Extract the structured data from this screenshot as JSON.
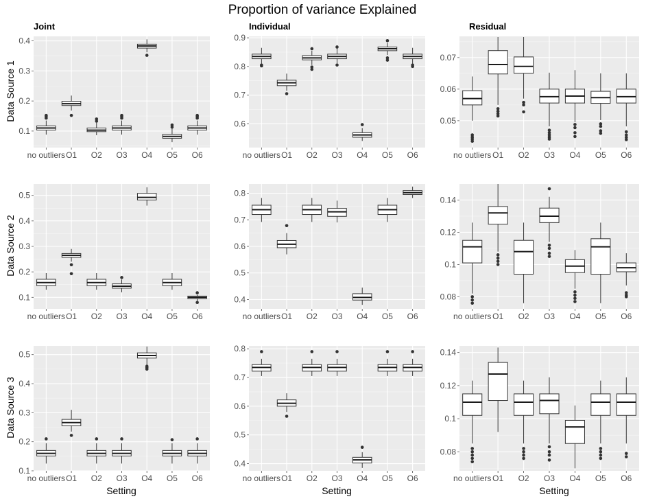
{
  "chart_data": {
    "type": "boxplot",
    "title": "Proportion of variance Explained",
    "xlabel": "Setting",
    "columns": [
      "Joint",
      "Individual",
      "Residual"
    ],
    "rows": [
      "Data Source 1",
      "Data Source 2",
      "Data Source 3"
    ],
    "categories": [
      "no outliers",
      "O1",
      "O2",
      "O3",
      "O4",
      "O5",
      "O6"
    ],
    "panels": [
      {
        "row": 0,
        "col": 0,
        "ylim": [
          0.045,
          0.415
        ],
        "yticks": [
          0.1,
          0.2,
          0.3,
          0.4
        ],
        "boxes": [
          {
            "q1": 0.103,
            "med": 0.11,
            "q3": 0.117,
            "lo": 0.088,
            "hi": 0.135,
            "out": [
              0.143,
              0.148,
              0.152
            ]
          },
          {
            "q1": 0.185,
            "med": 0.191,
            "q3": 0.199,
            "lo": 0.168,
            "hi": 0.218,
            "out": [
              0.152
            ]
          },
          {
            "q1": 0.098,
            "med": 0.103,
            "q3": 0.11,
            "lo": 0.086,
            "hi": 0.128,
            "out": [
              0.133,
              0.14
            ]
          },
          {
            "q1": 0.103,
            "med": 0.11,
            "q3": 0.117,
            "lo": 0.088,
            "hi": 0.135,
            "out": [
              0.143,
              0.148,
              0.152
            ]
          },
          {
            "q1": 0.376,
            "med": 0.383,
            "q3": 0.389,
            "lo": 0.362,
            "hi": 0.405,
            "out": [
              0.352
            ]
          },
          {
            "q1": 0.076,
            "med": 0.082,
            "q3": 0.089,
            "lo": 0.063,
            "hi": 0.108,
            "out": [
              0.113,
              0.12
            ]
          },
          {
            "q1": 0.103,
            "med": 0.11,
            "q3": 0.117,
            "lo": 0.088,
            "hi": 0.135,
            "out": [
              0.143,
              0.148,
              0.152
            ]
          }
        ]
      },
      {
        "row": 0,
        "col": 1,
        "ylim": [
          0.517,
          0.905
        ],
        "yticks": [
          0.6,
          0.7,
          0.8,
          0.9
        ],
        "boxes": [
          {
            "q1": 0.827,
            "med": 0.835,
            "q3": 0.843,
            "lo": 0.81,
            "hi": 0.865,
            "out": [
              0.805,
              0.802
            ]
          },
          {
            "q1": 0.733,
            "med": 0.743,
            "q3": 0.752,
            "lo": 0.715,
            "hi": 0.775,
            "out": [
              0.705
            ]
          },
          {
            "q1": 0.823,
            "med": 0.83,
            "q3": 0.838,
            "lo": 0.805,
            "hi": 0.855,
            "out": [
              0.862,
              0.798,
              0.79
            ]
          },
          {
            "q1": 0.827,
            "med": 0.835,
            "q3": 0.843,
            "lo": 0.81,
            "hi": 0.865,
            "out": [
              0.805,
              0.868
            ]
          },
          {
            "q1": 0.553,
            "med": 0.561,
            "q3": 0.569,
            "lo": 0.54,
            "hi": 0.585,
            "out": [
              0.597
            ]
          },
          {
            "q1": 0.855,
            "med": 0.862,
            "q3": 0.868,
            "lo": 0.84,
            "hi": 0.882,
            "out": [
              0.89,
              0.83,
              0.822
            ]
          },
          {
            "q1": 0.827,
            "med": 0.835,
            "q3": 0.843,
            "lo": 0.81,
            "hi": 0.865,
            "out": [
              0.805,
              0.8
            ]
          }
        ]
      },
      {
        "row": 0,
        "col": 2,
        "ylim": [
          0.0415,
          0.0767
        ],
        "yticks": [
          0.05,
          0.06,
          0.07
        ],
        "boxes": [
          {
            "q1": 0.055,
            "med": 0.057,
            "q3": 0.0595,
            "lo": 0.05,
            "hi": 0.064,
            "out": [
              0.0455,
              0.0448,
              0.0442,
              0.0435
            ]
          },
          {
            "q1": 0.0648,
            "med": 0.0678,
            "q3": 0.0722,
            "lo": 0.055,
            "hi": 0.0765,
            "out": [
              0.0538,
              0.053,
              0.0522,
              0.0515
            ]
          },
          {
            "q1": 0.065,
            "med": 0.0672,
            "q3": 0.0702,
            "lo": 0.057,
            "hi": 0.0765,
            "out": [
              0.0558,
              0.055,
              0.0528
            ]
          },
          {
            "q1": 0.0556,
            "med": 0.0576,
            "q3": 0.06,
            "lo": 0.0482,
            "hi": 0.0652,
            "out": [
              0.047,
              0.0462,
              0.0455,
              0.0448,
              0.0442
            ]
          },
          {
            "q1": 0.0556,
            "med": 0.0578,
            "q3": 0.06,
            "lo": 0.0495,
            "hi": 0.066,
            "out": [
              0.0488,
              0.0478,
              0.0462,
              0.045
            ]
          },
          {
            "q1": 0.0555,
            "med": 0.0573,
            "q3": 0.0593,
            "lo": 0.0502,
            "hi": 0.065,
            "out": [
              0.049,
              0.0482,
              0.0468,
              0.046
            ]
          },
          {
            "q1": 0.0556,
            "med": 0.0576,
            "q3": 0.06,
            "lo": 0.0482,
            "hi": 0.065,
            "out": [
              0.0465,
              0.0455,
              0.0447,
              0.044
            ]
          }
        ]
      },
      {
        "row": 1,
        "col": 0,
        "ylim": [
          0.055,
          0.545
        ],
        "yticks": [
          0.1,
          0.2,
          0.3,
          0.4,
          0.5
        ],
        "boxes": [
          {
            "q1": 0.146,
            "med": 0.158,
            "q3": 0.171,
            "lo": 0.13,
            "hi": 0.195,
            "out": []
          },
          {
            "q1": 0.257,
            "med": 0.265,
            "q3": 0.272,
            "lo": 0.24,
            "hi": 0.29,
            "out": [
              0.228,
              0.193
            ]
          },
          {
            "q1": 0.146,
            "med": 0.158,
            "q3": 0.171,
            "lo": 0.13,
            "hi": 0.195,
            "out": []
          },
          {
            "q1": 0.136,
            "med": 0.144,
            "q3": 0.153,
            "lo": 0.12,
            "hi": 0.17,
            "out": [
              0.178
            ]
          },
          {
            "q1": 0.482,
            "med": 0.492,
            "q3": 0.508,
            "lo": 0.46,
            "hi": 0.532,
            "out": []
          },
          {
            "q1": 0.146,
            "med": 0.158,
            "q3": 0.171,
            "lo": 0.13,
            "hi": 0.195,
            "out": []
          },
          {
            "q1": 0.095,
            "med": 0.1,
            "q3": 0.105,
            "lo": 0.086,
            "hi": 0.11,
            "out": [
              0.118,
              0.08
            ]
          }
        ]
      },
      {
        "row": 1,
        "col": 1,
        "ylim": [
          0.365,
          0.835
        ],
        "yticks": [
          0.4,
          0.5,
          0.6,
          0.7,
          0.8
        ],
        "boxes": [
          {
            "q1": 0.72,
            "med": 0.738,
            "q3": 0.755,
            "lo": 0.692,
            "hi": 0.782,
            "out": []
          },
          {
            "q1": 0.595,
            "med": 0.608,
            "q3": 0.622,
            "lo": 0.57,
            "hi": 0.65,
            "out": [
              0.678
            ]
          },
          {
            "q1": 0.72,
            "med": 0.738,
            "q3": 0.755,
            "lo": 0.692,
            "hi": 0.782,
            "out": []
          },
          {
            "q1": 0.713,
            "med": 0.73,
            "q3": 0.743,
            "lo": 0.69,
            "hi": 0.772,
            "out": []
          },
          {
            "q1": 0.398,
            "med": 0.408,
            "q3": 0.422,
            "lo": 0.38,
            "hi": 0.445,
            "out": []
          },
          {
            "q1": 0.72,
            "med": 0.738,
            "q3": 0.755,
            "lo": 0.692,
            "hi": 0.782,
            "out": []
          },
          {
            "q1": 0.795,
            "med": 0.802,
            "q3": 0.81,
            "lo": 0.782,
            "hi": 0.825,
            "out": []
          }
        ]
      },
      {
        "row": 1,
        "col": 2,
        "ylim": [
          0.0725,
          0.15
        ],
        "yticks": [
          0.08,
          0.1,
          0.12,
          0.14
        ],
        "boxes": [
          {
            "q1": 0.101,
            "med": 0.111,
            "q3": 0.115,
            "lo": 0.082,
            "hi": 0.126,
            "out": [
              0.08,
              0.078,
              0.076
            ]
          },
          {
            "q1": 0.125,
            "med": 0.132,
            "q3": 0.136,
            "lo": 0.108,
            "hi": 0.15,
            "out": [
              0.106,
              0.104,
              0.102,
              0.1
            ]
          },
          {
            "q1": 0.094,
            "med": 0.108,
            "q3": 0.115,
            "lo": 0.076,
            "hi": 0.126,
            "out": []
          },
          {
            "q1": 0.126,
            "med": 0.13,
            "q3": 0.135,
            "lo": 0.114,
            "hi": 0.142,
            "out": [
              0.147,
              0.112,
              0.11,
              0.107,
              0.105
            ]
          },
          {
            "q1": 0.095,
            "med": 0.099,
            "q3": 0.103,
            "lo": 0.085,
            "hi": 0.109,
            "out": [
              0.083,
              0.081,
              0.079,
              0.077
            ]
          },
          {
            "q1": 0.094,
            "med": 0.111,
            "q3": 0.116,
            "lo": 0.076,
            "hi": 0.126,
            "out": []
          },
          {
            "q1": 0.0955,
            "med": 0.098,
            "q3": 0.101,
            "lo": 0.087,
            "hi": 0.107,
            "out": [
              0.0825,
              0.081,
              0.08
            ]
          }
        ]
      },
      {
        "row": 2,
        "col": 0,
        "ylim": [
          0.1,
          0.53
        ],
        "yticks": [
          0.1,
          0.2,
          0.3,
          0.4,
          0.5
        ],
        "boxes": [
          {
            "q1": 0.151,
            "med": 0.16,
            "q3": 0.17,
            "lo": 0.125,
            "hi": 0.195,
            "out": [
              0.21
            ]
          },
          {
            "q1": 0.255,
            "med": 0.266,
            "q3": 0.277,
            "lo": 0.235,
            "hi": 0.31,
            "out": [
              0.222
            ]
          },
          {
            "q1": 0.151,
            "med": 0.16,
            "q3": 0.17,
            "lo": 0.125,
            "hi": 0.195,
            "out": [
              0.21
            ]
          },
          {
            "q1": 0.151,
            "med": 0.16,
            "q3": 0.17,
            "lo": 0.125,
            "hi": 0.195,
            "out": [
              0.21
            ]
          },
          {
            "q1": 0.488,
            "med": 0.497,
            "q3": 0.506,
            "lo": 0.465,
            "hi": 0.528,
            "out": [
              0.46,
              0.455,
              0.45
            ]
          },
          {
            "q1": 0.151,
            "med": 0.16,
            "q3": 0.17,
            "lo": 0.125,
            "hi": 0.195,
            "out": [
              0.207
            ]
          },
          {
            "q1": 0.151,
            "med": 0.16,
            "q3": 0.17,
            "lo": 0.125,
            "hi": 0.195,
            "out": [
              0.21
            ]
          }
        ]
      },
      {
        "row": 2,
        "col": 1,
        "ylim": [
          0.375,
          0.81
        ],
        "yticks": [
          0.4,
          0.5,
          0.6,
          0.7,
          0.8
        ],
        "boxes": [
          {
            "q1": 0.722,
            "med": 0.735,
            "q3": 0.745,
            "lo": 0.705,
            "hi": 0.765,
            "out": [
              0.79
            ]
          },
          {
            "q1": 0.6,
            "med": 0.61,
            "q3": 0.622,
            "lo": 0.58,
            "hi": 0.645,
            "out": [
              0.565
            ]
          },
          {
            "q1": 0.722,
            "med": 0.735,
            "q3": 0.745,
            "lo": 0.705,
            "hi": 0.765,
            "out": [
              0.79
            ]
          },
          {
            "q1": 0.722,
            "med": 0.735,
            "q3": 0.745,
            "lo": 0.705,
            "hi": 0.765,
            "out": [
              0.79
            ]
          },
          {
            "q1": 0.402,
            "med": 0.413,
            "q3": 0.422,
            "lo": 0.385,
            "hi": 0.44,
            "out": [
              0.457
            ]
          },
          {
            "q1": 0.722,
            "med": 0.735,
            "q3": 0.745,
            "lo": 0.705,
            "hi": 0.765,
            "out": [
              0.79
            ]
          },
          {
            "q1": 0.722,
            "med": 0.735,
            "q3": 0.745,
            "lo": 0.705,
            "hi": 0.765,
            "out": [
              0.79
            ]
          }
        ]
      },
      {
        "row": 2,
        "col": 2,
        "ylim": [
          0.0685,
          0.144
        ],
        "yticks": [
          0.08,
          0.1,
          0.12,
          0.14
        ],
        "boxes": [
          {
            "q1": 0.102,
            "med": 0.11,
            "q3": 0.115,
            "lo": 0.085,
            "hi": 0.123,
            "out": [
              0.082,
              0.08,
              0.078,
              0.076,
              0.074
            ]
          },
          {
            "q1": 0.111,
            "med": 0.127,
            "q3": 0.134,
            "lo": 0.092,
            "hi": 0.143,
            "out": []
          },
          {
            "q1": 0.102,
            "med": 0.11,
            "q3": 0.115,
            "lo": 0.085,
            "hi": 0.123,
            "out": [
              0.082,
              0.08,
              0.078,
              0.076
            ]
          },
          {
            "q1": 0.103,
            "med": 0.111,
            "q3": 0.115,
            "lo": 0.085,
            "hi": 0.125,
            "out": [
              0.083,
              0.08,
              0.078,
              0.075
            ]
          },
          {
            "q1": 0.085,
            "med": 0.095,
            "q3": 0.099,
            "lo": 0.07,
            "hi": 0.108,
            "out": []
          },
          {
            "q1": 0.102,
            "med": 0.11,
            "q3": 0.115,
            "lo": 0.085,
            "hi": 0.123,
            "out": [
              0.082,
              0.08,
              0.078,
              0.076
            ]
          },
          {
            "q1": 0.102,
            "med": 0.11,
            "q3": 0.115,
            "lo": 0.085,
            "hi": 0.125,
            "out": [
              0.079,
              0.077
            ]
          }
        ]
      }
    ]
  }
}
